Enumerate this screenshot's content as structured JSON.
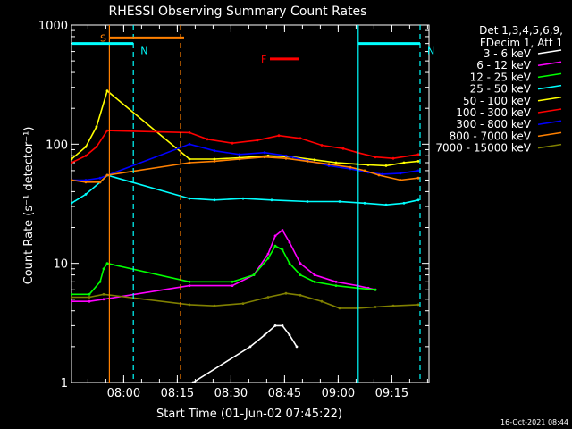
{
  "chart_data": {
    "type": "line",
    "title": "RHESSI Observing Summary Count Rates",
    "xlabel": "Start Time (01-Jun-02 07:45:22)",
    "ylabel": "Count Rate (s⁻¹ detector⁻¹)",
    "yscale": "log",
    "ylim": [
      1,
      1000
    ],
    "xlim_minutes": [
      0,
      100
    ],
    "x_tick_labels": [
      "08:00",
      "08:15",
      "08:30",
      "08:45",
      "09:00",
      "09:15"
    ],
    "x_tick_minutes": [
      14.6,
      29.6,
      44.6,
      59.6,
      74.6,
      89.6
    ],
    "y_tick_labels": [
      "1",
      "10",
      "100",
      "1000"
    ],
    "y_tick_values": [
      1,
      10,
      100,
      1000
    ],
    "legend_header": [
      "Det 1,3,4,5,6,9,",
      "FDecim 1, Att 1"
    ],
    "timestamp": "16-Oct-2021 08:44",
    "flags": [
      {
        "label": "S",
        "color": "#ff8000",
        "start": 10.5,
        "end": 31.5,
        "level": 780
      },
      {
        "label": "N",
        "color": "#00ffff",
        "start": 0.2,
        "end": 17.3,
        "level": 700
      },
      {
        "label": "N",
        "color": "#00ffff",
        "start": 80.2,
        "end": 97.5,
        "level": 700
      },
      {
        "label": "F",
        "color": "#ff0000",
        "start": 55.5,
        "end": 63.5,
        "level": 520
      }
    ],
    "markers": [
      {
        "minute": 10.6,
        "color": "#ff8000",
        "style": "solid"
      },
      {
        "minute": 17.3,
        "color": "#00ffff",
        "style": "dashed"
      },
      {
        "minute": 30.5,
        "color": "#ff8000",
        "style": "dashed"
      },
      {
        "minute": 80.2,
        "color": "#00ffff",
        "style": "solid"
      },
      {
        "minute": 97.5,
        "color": "#00ffff",
        "style": "dashed"
      }
    ],
    "gaps_minutes": [
      [
        10.6,
        33.0
      ]
    ],
    "series": [
      {
        "name": "3 - 6 keV",
        "color": "#ffffff",
        "x": [
          34,
          50,
          54,
          57,
          59,
          61,
          63
        ],
        "y": [
          1,
          2,
          2.5,
          3,
          3,
          2.5,
          2
        ]
      },
      {
        "name": "6 - 12 keV",
        "color": "#ff00ff",
        "x": [
          0,
          5,
          9,
          33,
          45,
          51,
          55,
          57,
          59,
          61,
          64,
          68,
          74,
          80,
          83,
          85
        ],
        "y": [
          4.8,
          4.8,
          5,
          6.5,
          6.5,
          8,
          12,
          17,
          19,
          15,
          10,
          8,
          7,
          6.5,
          6.2,
          6
        ]
      },
      {
        "name": "12 - 25 keV",
        "color": "#00ff00",
        "x": [
          0,
          5,
          8,
          9,
          10,
          33,
          45,
          51,
          55,
          57,
          59,
          61,
          64,
          68,
          74,
          80,
          85
        ],
        "y": [
          5.5,
          5.5,
          7,
          9,
          10,
          7,
          7,
          8,
          11,
          14,
          13,
          10,
          8,
          7,
          6.5,
          6.2,
          6
        ]
      },
      {
        "name": "25 - 50 keV",
        "color": "#00ffff",
        "x": [
          0,
          4,
          8,
          10,
          33,
          40,
          48,
          56,
          66,
          75,
          82,
          88,
          93,
          97
        ],
        "y": [
          32,
          38,
          48,
          55,
          35,
          34,
          35,
          34,
          33,
          33,
          32,
          31,
          32,
          34
        ]
      },
      {
        "name": "50 - 100 keV",
        "color": "#ffff00",
        "x": [
          0,
          4,
          7,
          10,
          33,
          40,
          47,
          55,
          62,
          68,
          74,
          80,
          83,
          88,
          93,
          97
        ],
        "y": [
          75,
          95,
          140,
          280,
          75,
          75,
          77,
          80,
          78,
          74,
          70,
          68,
          67,
          66,
          70,
          72
        ]
      },
      {
        "name": "100 - 300 keV",
        "color": "#ff0000",
        "x": [
          0,
          4,
          7,
          10,
          33,
          38,
          45,
          52,
          58,
          64,
          70,
          76,
          80,
          85,
          90,
          97
        ],
        "y": [
          70,
          80,
          95,
          130,
          125,
          110,
          102,
          108,
          118,
          112,
          98,
          92,
          85,
          78,
          76,
          82
        ]
      },
      {
        "name": "300 - 800 keV",
        "color": "#0000ff",
        "x": [
          0,
          4,
          8,
          33,
          40,
          47,
          54,
          60,
          66,
          72,
          78,
          83,
          87,
          92,
          97
        ],
        "y": [
          50,
          50,
          52,
          100,
          88,
          82,
          85,
          80,
          73,
          66,
          62,
          58,
          56,
          57,
          60
        ]
      },
      {
        "name": "800 - 7000 keV",
        "color": "#ff8000",
        "x": [
          0,
          4,
          8,
          10,
          33,
          40,
          47,
          54,
          60,
          66,
          72,
          78,
          82,
          86,
          92,
          97
        ],
        "y": [
          50,
          48,
          48,
          55,
          70,
          72,
          75,
          78,
          76,
          72,
          68,
          64,
          60,
          55,
          50,
          52
        ]
      },
      {
        "name": "7000 - 15000 keV",
        "color": "#808000",
        "x": [
          0,
          5,
          9,
          33,
          40,
          48,
          55,
          60,
          64,
          70,
          75,
          80,
          85,
          90,
          97
        ],
        "y": [
          5.2,
          5.2,
          5.5,
          4.5,
          4.4,
          4.6,
          5.2,
          5.6,
          5.4,
          4.8,
          4.2,
          4.2,
          4.3,
          4.4,
          4.5
        ]
      }
    ]
  }
}
